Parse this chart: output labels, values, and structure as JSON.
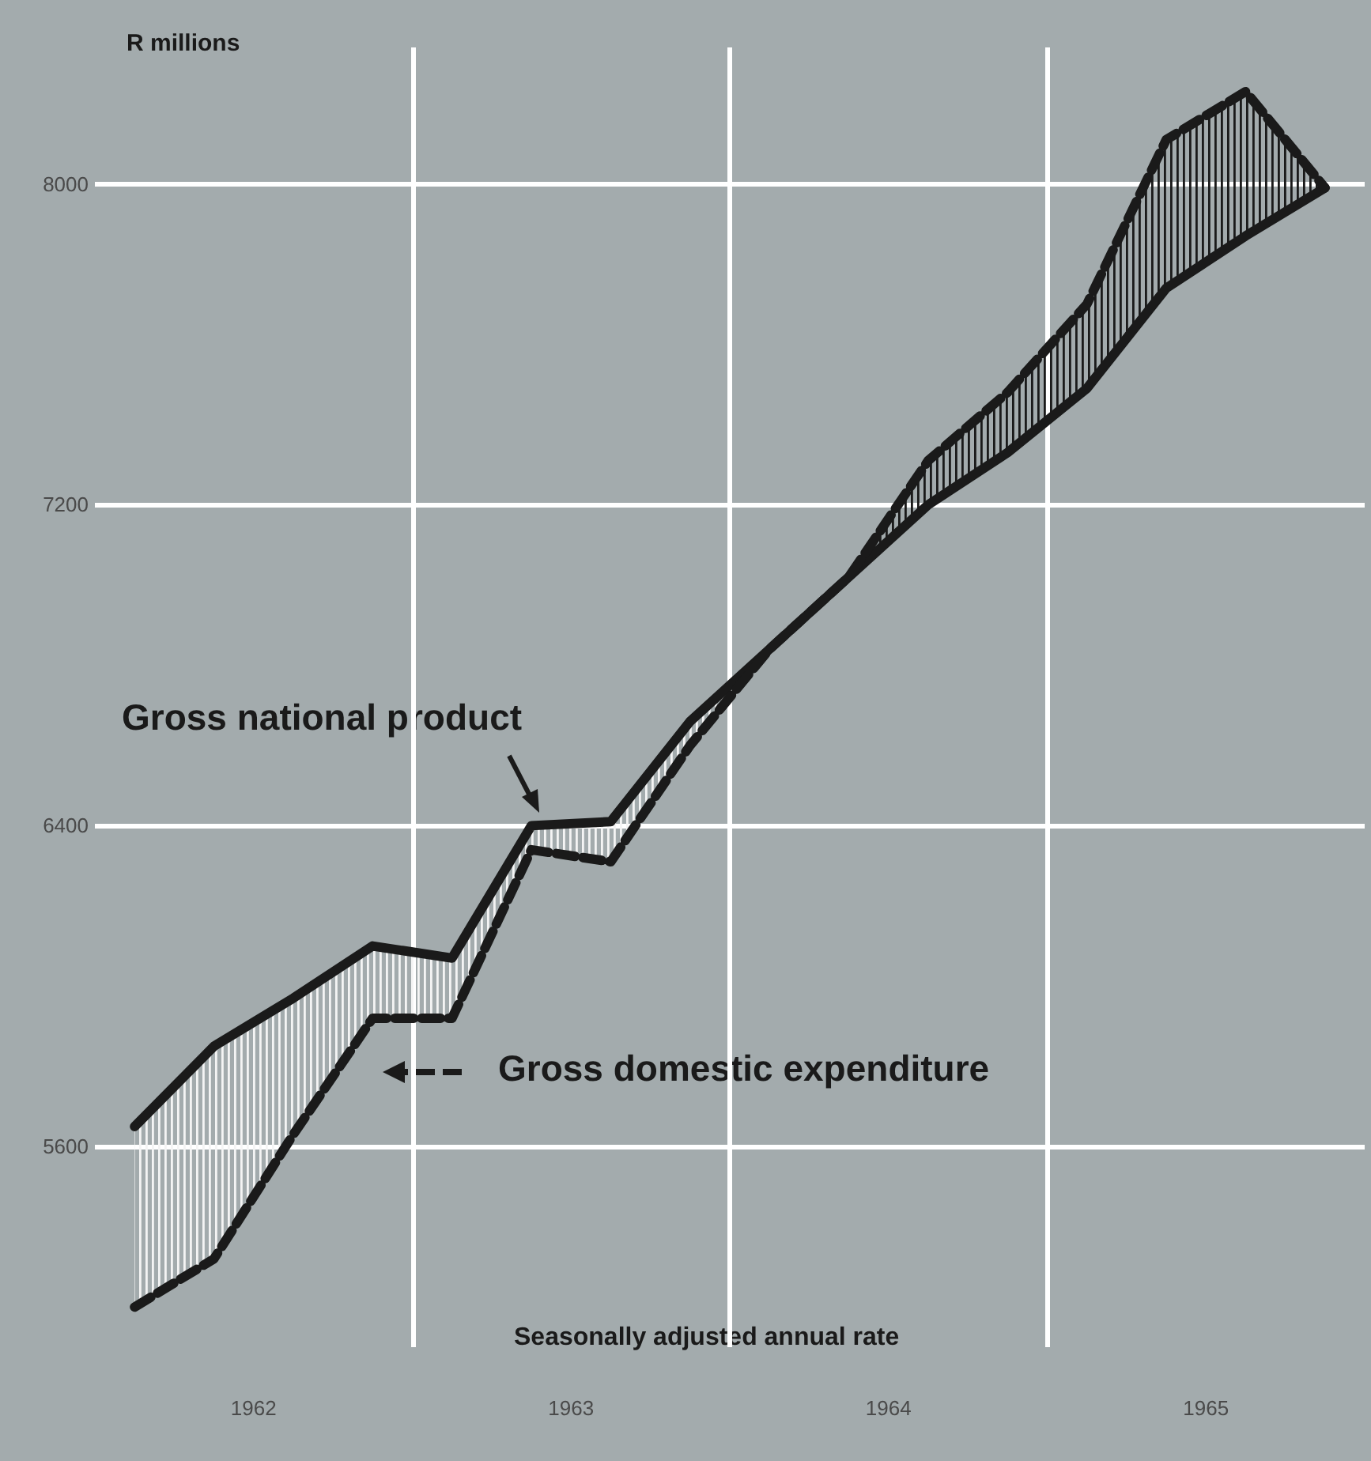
{
  "chart_data": {
    "type": "line",
    "ylabel": "R millions",
    "x": [
      1962.125,
      1962.375,
      1962.625,
      1962.875,
      1963.125,
      1963.375,
      1963.625,
      1963.875,
      1964.125,
      1964.375,
      1964.625,
      1964.875,
      1965.125,
      1965.375,
      1965.625,
      1965.875
    ],
    "series": [
      {
        "name": "Gross national product",
        "color": "#1a1a1a",
        "line_style": "solid",
        "values": [
          5650,
          5850,
          5970,
          6100,
          6070,
          6400,
          6410,
          6660,
          6840,
          7020,
          7200,
          7330,
          7490,
          7740,
          7870,
          7990
        ],
        "lower": [
          5200,
          5320,
          5630,
          5920,
          5920,
          6340,
          6310,
          6600,
          6840,
          null,
          null,
          null,
          null,
          null,
          null,
          null
        ],
        "upper": [
          5650,
          5850,
          5970,
          6100,
          6070,
          6400,
          6410,
          6660,
          6840,
          null,
          null,
          null,
          null,
          null,
          null,
          null
        ]
      },
      {
        "name": "Gross domestic expenditure",
        "color": "#1a1a1a",
        "line_style": "dashed",
        "values": [
          5200,
          5320,
          5630,
          5920,
          5920,
          6340,
          6310,
          6600,
          6840,
          7020,
          7310,
          7480,
          7700,
          8110,
          8230,
          7990
        ],
        "lower": [
          null,
          null,
          null,
          null,
          null,
          null,
          null,
          null,
          6840,
          7020,
          7200,
          7330,
          7490,
          7740,
          7870,
          7990
        ],
        "upper": [
          null,
          null,
          null,
          null,
          null,
          null,
          null,
          null,
          6840,
          7020,
          7310,
          7480,
          7700,
          8110,
          8230,
          7990
        ]
      }
    ],
    "xlim": [
      1962,
      1966
    ],
    "xticks": [
      {
        "value": 1962.5,
        "label": "1962"
      },
      {
        "value": 1963,
        "label": null
      },
      {
        "value": 1963.5,
        "label": "1963"
      },
      {
        "value": 1964,
        "label": null
      },
      {
        "value": 1964.5,
        "label": "1964"
      },
      {
        "value": 1965,
        "label": null
      },
      {
        "value": 1965.5,
        "label": "1965"
      }
    ],
    "ylim": [
      5100,
      8340
    ],
    "yticks": [
      5600,
      6400,
      7200,
      8000
    ],
    "grid": true,
    "marker": "none",
    "annotations": [
      "Seasonally adjusted annual rate"
    ]
  }
}
